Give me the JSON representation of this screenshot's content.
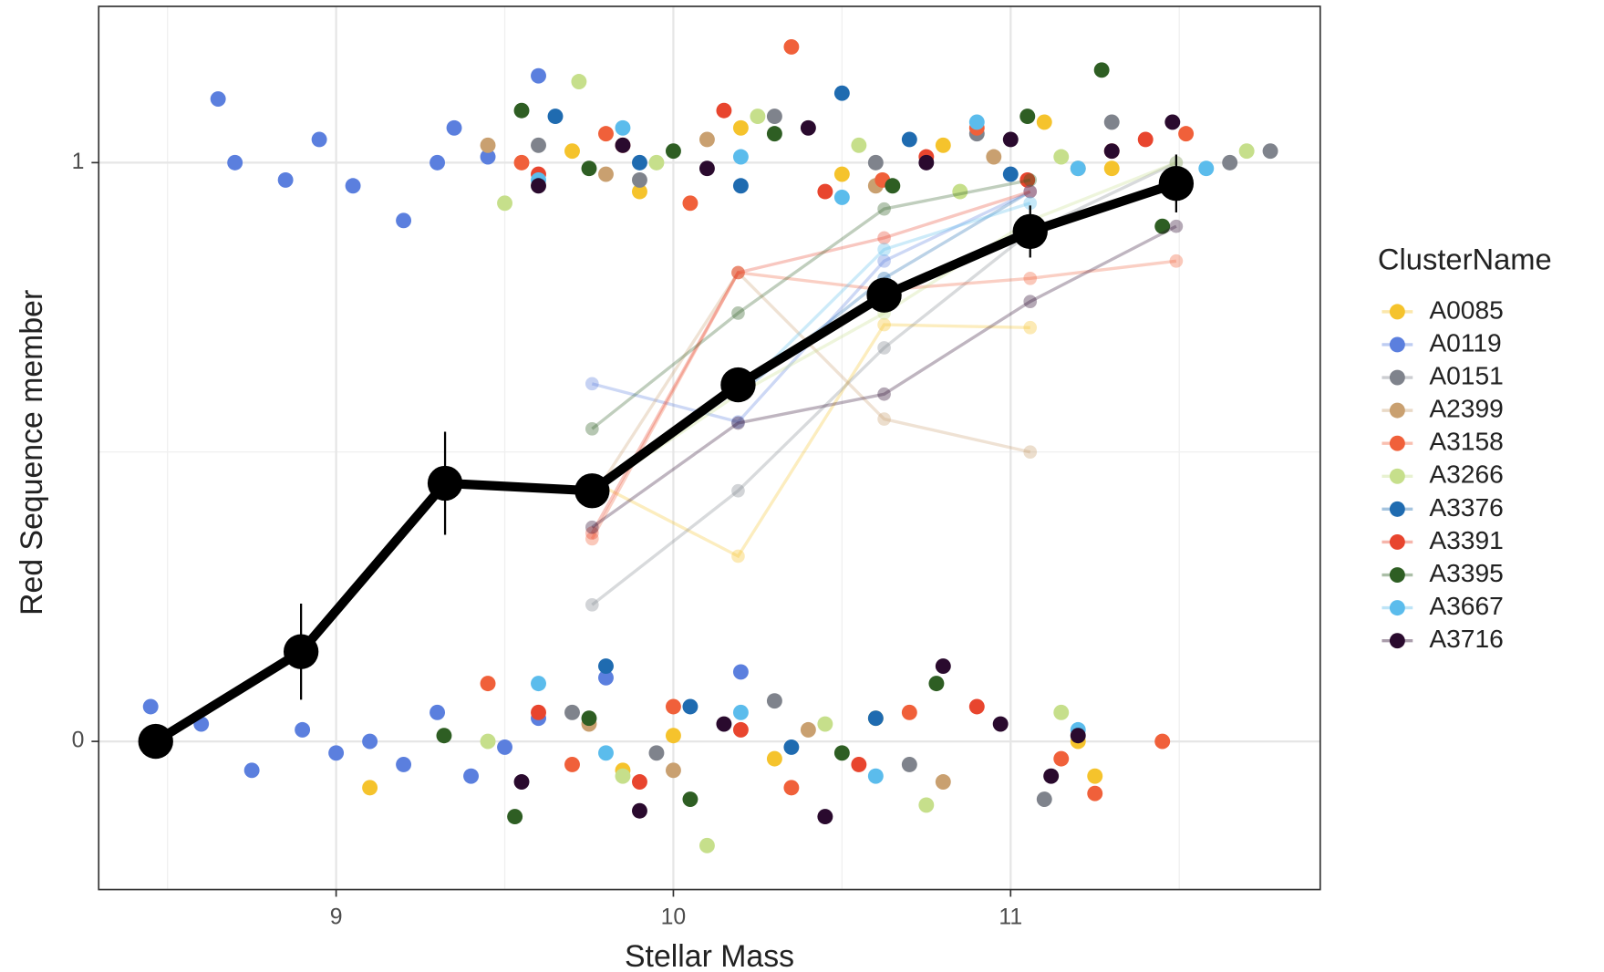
{
  "chart_data": {
    "type": "scatter",
    "x_label": "Stellar Mass",
    "y_label": "Red Sequence member",
    "legend_title": "ClusterName",
    "legend_position": "right",
    "grid": true,
    "xlim": [
      8.296,
      11.918
    ],
    "ylim": [
      -0.256,
      1.27
    ],
    "xticks": [
      9,
      10,
      11
    ],
    "yticks": [
      0,
      1
    ],
    "minor_xticks": [
      8.5,
      9.5,
      10.5,
      11.5
    ],
    "minor_yticks": [
      0.5
    ],
    "line_x": [
      9.759,
      10.192,
      10.625,
      11.058,
      11.491
    ],
    "series": [
      {
        "name": "A0085",
        "color": "#f5c32c",
        "x": [
          9.7,
          9.9,
          10.2,
          10.5,
          10.8,
          11.1,
          11.3,
          9.1,
          9.85,
          10.0,
          10.3,
          10.6,
          11.2,
          11.25
        ],
        "y": [
          1.02,
          0.95,
          1.06,
          0.98,
          1.03,
          1.07,
          0.99,
          -0.08,
          -0.05,
          0.01,
          -0.03,
          0.04,
          0.0,
          -0.06
        ],
        "line_values": [
          0.45,
          0.32,
          0.72,
          0.715,
          null
        ]
      },
      {
        "name": "A0119",
        "color": "#5b7fde",
        "x": [
          8.65,
          8.7,
          8.85,
          8.95,
          9.05,
          9.2,
          9.3,
          9.35,
          9.45,
          9.6,
          8.45,
          8.6,
          8.75,
          8.9,
          9.0,
          9.1,
          9.2,
          9.3,
          9.4,
          9.5,
          9.6,
          9.8,
          10.2
        ],
        "y": [
          1.11,
          1.0,
          0.97,
          1.04,
          0.96,
          0.9,
          1.0,
          1.06,
          1.01,
          1.15,
          0.06,
          0.03,
          -0.05,
          0.02,
          -0.02,
          0.0,
          -0.04,
          0.05,
          -0.06,
          -0.01,
          0.04,
          0.11,
          0.12
        ],
        "line_values": [
          0.618,
          0.552,
          0.83,
          0.95,
          null
        ]
      },
      {
        "name": "A0151",
        "color": "#7f838c",
        "x": [
          9.6,
          9.9,
          10.3,
          10.6,
          10.9,
          11.3,
          11.65,
          11.77,
          9.7,
          9.95,
          10.3,
          10.7,
          11.1
        ],
        "y": [
          1.03,
          0.97,
          1.08,
          1.0,
          1.05,
          1.07,
          1.0,
          1.02,
          0.05,
          -0.02,
          0.07,
          -0.04,
          -0.1
        ],
        "line_values": [
          0.236,
          0.433,
          0.68,
          0.88,
          1.0
        ]
      },
      {
        "name": "A2399",
        "color": "#c9a070",
        "x": [
          9.45,
          9.8,
          10.1,
          10.6,
          10.95,
          11.2,
          9.75,
          10.0,
          10.4,
          10.8
        ],
        "y": [
          1.03,
          0.98,
          1.04,
          0.96,
          1.01,
          0.99,
          0.03,
          -0.05,
          0.02,
          -0.07
        ],
        "line_values": [
          0.42,
          0.81,
          0.557,
          0.5,
          null
        ]
      },
      {
        "name": "A3158",
        "color": "#f0603a",
        "x": [
          9.55,
          9.8,
          10.05,
          10.35,
          10.62,
          10.9,
          11.3,
          11.52,
          9.45,
          9.7,
          10.0,
          10.35,
          10.7,
          11.15,
          11.25,
          11.45
        ],
        "y": [
          1.0,
          1.05,
          0.93,
          1.2,
          0.97,
          1.06,
          1.02,
          1.05,
          0.1,
          -0.04,
          0.06,
          -0.08,
          0.05,
          -0.03,
          -0.09,
          0.0
        ],
        "line_values": [
          0.35,
          0.81,
          0.78,
          0.8,
          0.83
        ]
      },
      {
        "name": "A3266",
        "color": "#c6df8b",
        "x": [
          9.5,
          9.72,
          9.95,
          10.25,
          10.55,
          10.85,
          11.15,
          11.7,
          9.45,
          9.85,
          10.1,
          10.45,
          10.75,
          11.15
        ],
        "y": [
          0.93,
          1.14,
          1.0,
          1.08,
          1.03,
          0.95,
          1.01,
          1.02,
          0.0,
          -0.06,
          -0.18,
          0.03,
          -0.11,
          0.05
        ],
        "line_values": [
          0.43,
          0.6,
          0.74,
          0.9,
          1.0
        ]
      },
      {
        "name": "A3376",
        "color": "#1f6bb0",
        "x": [
          9.65,
          9.9,
          10.2,
          10.5,
          10.7,
          11.0,
          9.8,
          10.05,
          10.35,
          10.6
        ],
        "y": [
          1.08,
          1.0,
          0.96,
          1.12,
          1.04,
          0.98,
          0.13,
          0.06,
          -0.01,
          0.04
        ],
        "line_values": [
          null,
          0.6,
          0.8,
          0.95,
          null
        ]
      },
      {
        "name": "A3391",
        "color": "#e8452e",
        "x": [
          9.6,
          9.85,
          10.15,
          10.45,
          10.75,
          11.05,
          11.4,
          9.6,
          9.9,
          10.2,
          10.55,
          10.9
        ],
        "y": [
          0.98,
          1.03,
          1.09,
          0.95,
          1.01,
          0.97,
          1.04,
          0.05,
          -0.07,
          0.02,
          -0.04,
          0.06
        ],
        "line_values": [
          0.36,
          0.81,
          0.87,
          0.95,
          null
        ]
      },
      {
        "name": "A3395",
        "color": "#2e5e23",
        "x": [
          9.55,
          9.75,
          10.0,
          10.3,
          10.65,
          11.05,
          11.27,
          11.45,
          9.32,
          9.53,
          9.75,
          10.05,
          10.5,
          10.78
        ],
        "y": [
          1.09,
          0.99,
          1.02,
          1.05,
          0.96,
          1.08,
          1.16,
          0.89,
          0.01,
          -0.13,
          0.04,
          -0.1,
          -0.02,
          0.1
        ],
        "line_values": [
          0.54,
          0.74,
          0.92,
          0.97,
          null
        ]
      },
      {
        "name": "A3667",
        "color": "#5bbcec",
        "x": [
          9.6,
          9.85,
          10.2,
          10.5,
          10.9,
          11.2,
          11.58,
          9.6,
          9.8,
          10.2,
          10.6,
          11.2
        ],
        "y": [
          0.97,
          1.06,
          1.01,
          0.94,
          1.07,
          0.99,
          0.99,
          0.1,
          -0.02,
          0.05,
          -0.06,
          0.02
        ],
        "line_values": [
          null,
          0.6,
          0.85,
          0.93,
          null
        ]
      },
      {
        "name": "A3716",
        "color": "#2a0a2e",
        "x": [
          9.6,
          9.85,
          10.1,
          10.4,
          10.75,
          11.0,
          11.3,
          11.48,
          9.55,
          9.9,
          10.15,
          10.45,
          10.8,
          10.97,
          11.12,
          11.2
        ],
        "y": [
          0.96,
          1.03,
          0.99,
          1.06,
          1.0,
          1.04,
          1.02,
          1.07,
          -0.07,
          -0.12,
          0.03,
          -0.13,
          0.13,
          0.03,
          -0.06,
          0.01
        ],
        "line_values": [
          0.37,
          0.55,
          0.6,
          0.76,
          0.89
        ]
      }
    ],
    "mean": {
      "color": "#000000",
      "x": [
        8.465,
        8.896,
        9.323,
        9.759,
        10.192,
        10.625,
        11.058,
        11.491
      ],
      "y": [
        0,
        0.155,
        0.446,
        0.433,
        0.616,
        0.771,
        0.881,
        0.964
      ],
      "error": [
        0,
        0.083,
        0.089,
        0.01,
        0.02,
        0.02,
        0.045,
        0.05
      ]
    }
  }
}
